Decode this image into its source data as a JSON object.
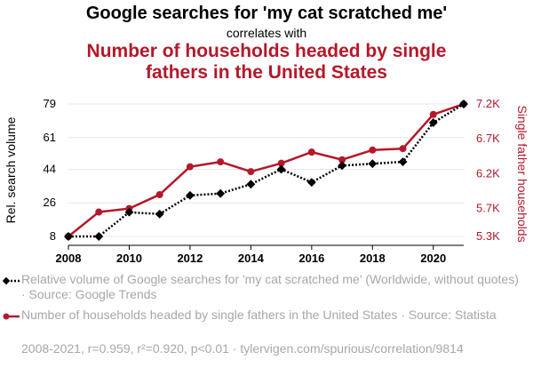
{
  "titles": {
    "line1": "Google searches for 'my cat scratched me'",
    "line2": "correlates with",
    "line3": "Number of households headed by single fathers in the United States"
  },
  "colors": {
    "series1": "#000000",
    "series2": "#b5182a",
    "grid": "#e8e8e8",
    "muted": "#a7a7a7"
  },
  "chart_data": {
    "type": "line",
    "x": [
      2008,
      2009,
      2010,
      2011,
      2012,
      2013,
      2014,
      2015,
      2016,
      2017,
      2018,
      2019,
      2020,
      2021
    ],
    "xticks": [
      2008,
      2010,
      2012,
      2014,
      2016,
      2018,
      2020
    ],
    "xlim": [
      2008,
      2021
    ],
    "y_left": {
      "label": "Rel. search volume",
      "ticks": [
        8,
        26,
        44,
        61,
        79
      ],
      "tick_labels": [
        "8",
        "26",
        "44",
        "61",
        "79"
      ],
      "lim": [
        8,
        79
      ]
    },
    "y_right": {
      "label": "Single father households",
      "ticks": [
        5300,
        5700,
        6200,
        6700,
        7200
      ],
      "tick_labels": [
        "5.3K",
        "5.7K",
        "6.2K",
        "6.7K",
        "7.2K"
      ],
      "lim": [
        5300,
        7200
      ]
    },
    "grid": true,
    "series": [
      {
        "name": "Relative volume of Google searches for 'my cat scratched me' (Worldwide, without quotes) · Source: Google Trends",
        "axis": "left",
        "style": "dotted",
        "marker": "diamond",
        "values": [
          8,
          8,
          21,
          20,
          30,
          31,
          36,
          44,
          37,
          46,
          47,
          48,
          69,
          79
        ]
      },
      {
        "name": "Number of households headed by single fathers in the United States · Source: Statista",
        "axis": "right",
        "style": "solid",
        "marker": "circle",
        "values": [
          5300,
          5650,
          5700,
          5900,
          6300,
          6370,
          6230,
          6350,
          6510,
          6400,
          6540,
          6560,
          7050,
          7200
        ]
      }
    ],
    "legend_position": "bottom"
  },
  "footer": "2008-2021, r=0.959, r²=0.920, p<0.01 · tylervigen.com/spurious/correlation/9814"
}
